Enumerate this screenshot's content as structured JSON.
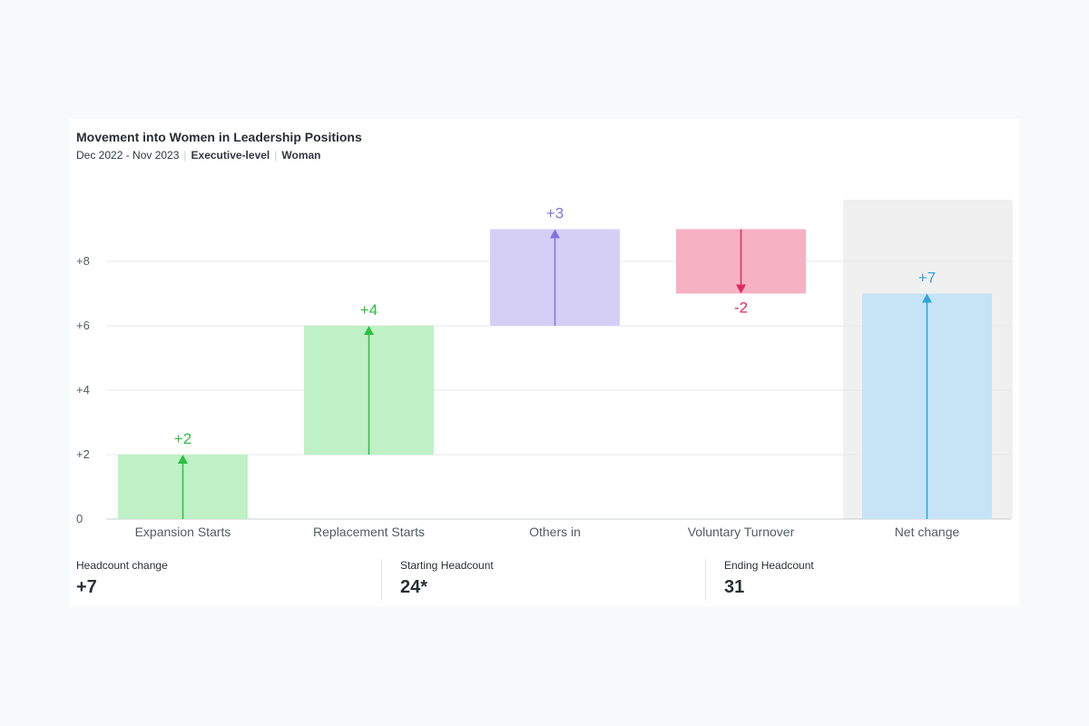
{
  "card": {
    "title": "Movement into Women in Leadership Positions",
    "period": "Dec 2022 - Nov 2023",
    "filter_level": "Executive-level",
    "filter_gender": "Woman"
  },
  "chart_data": {
    "type": "waterfall",
    "categories": [
      "Expansion Starts",
      "Replacement Starts",
      "Others in",
      "Voluntary Turnover",
      "Net change"
    ],
    "values": [
      2,
      4,
      3,
      -2,
      7
    ],
    "value_labels": [
      "+2",
      "+4",
      "+3",
      "-2",
      "+7"
    ],
    "y_ticks": [
      0,
      2,
      4,
      6,
      8
    ],
    "y_tick_labels": [
      "0",
      "+2",
      "+4",
      "+6",
      "+8"
    ],
    "ylim": [
      0,
      10
    ],
    "grid": true,
    "highlighted_category": "Net change",
    "colors": {
      "Expansion Starts": {
        "fill": "#bff0c6",
        "accent": "#2dbf44"
      },
      "Replacement Starts": {
        "fill": "#bff0c6",
        "accent": "#2dbf44"
      },
      "Others in": {
        "fill": "#d6cff5",
        "accent": "#8371e0"
      },
      "Voluntary Turnover": {
        "fill": "#f6b2c3",
        "accent": "#dd2d5d"
      },
      "Net change": {
        "fill": "#c6e4f6",
        "accent": "#2fa3df"
      }
    },
    "highlight_bg": "#f0f0f0",
    "grid_color": "#e6e7ea",
    "axis_text_color": "#555a62"
  },
  "stats": [
    {
      "label": "Headcount change",
      "value": "+7"
    },
    {
      "label": "Starting Headcount",
      "value": "24*"
    },
    {
      "label": "Ending Headcount",
      "value": "31"
    }
  ]
}
